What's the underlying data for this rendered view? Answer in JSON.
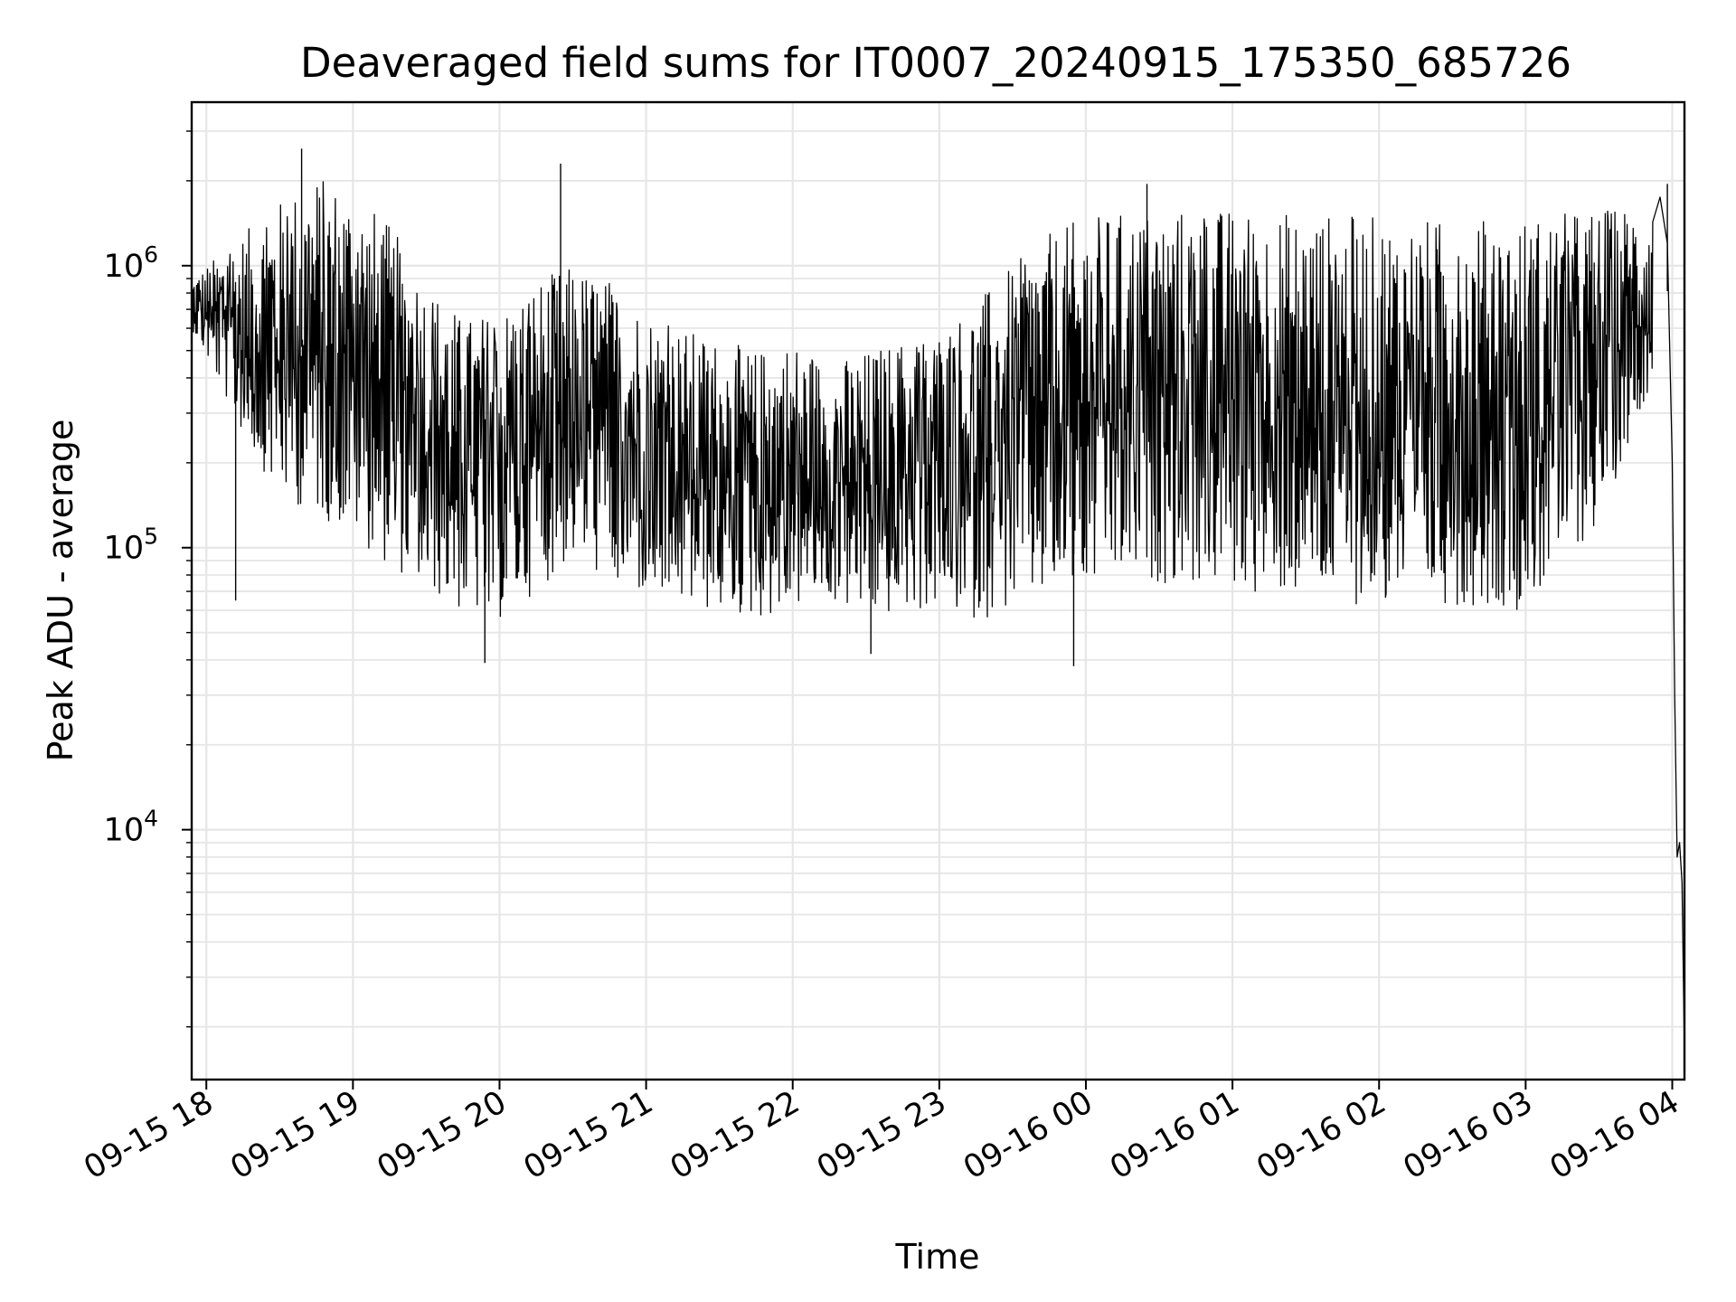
{
  "chart_data": {
    "type": "line",
    "title": "Deaveraged field sums for IT0007_20240915_175350_685726",
    "xlabel": "Time",
    "ylabel": "Peak ADU - average",
    "y_scale": "log",
    "ylim": [
      1300,
      3800000
    ],
    "xlim": [
      "2024-09-15T17:54:00",
      "2024-09-16T04:05:00"
    ],
    "x_ticks": [
      "09-15 18",
      "09-15 19",
      "09-15 20",
      "09-15 21",
      "09-15 22",
      "09-15 23",
      "09-16 00",
      "09-16 01",
      "09-16 02",
      "09-16 03",
      "09-16 04"
    ],
    "y_ticks": [
      {
        "base": "10",
        "exp": "4",
        "value": 10000
      },
      {
        "base": "10",
        "exp": "5",
        "value": 100000
      },
      {
        "base": "10",
        "exp": "6",
        "value": 1000000
      }
    ],
    "grid": true,
    "line_color": "#000000",
    "grid_color": "#e6e6e6",
    "series": [
      {
        "envelope_upper": [
          [
            "2024-09-15T17:54:00",
            900000
          ],
          [
            "2024-09-15T18:15:00",
            1300000
          ],
          [
            "2024-09-15T18:30:00",
            1700000
          ],
          [
            "2024-09-15T18:45:00",
            2100000
          ],
          [
            "2024-09-15T19:00:00",
            1900000
          ],
          [
            "2024-09-15T19:15:00",
            1400000
          ],
          [
            "2024-09-15T19:30:00",
            900000
          ],
          [
            "2024-09-15T19:45:00",
            650000
          ],
          [
            "2024-09-15T20:00:00",
            700000
          ],
          [
            "2024-09-15T20:15:00",
            900000
          ],
          [
            "2024-09-15T20:30:00",
            1000000
          ],
          [
            "2024-09-15T20:45:00",
            900000
          ],
          [
            "2024-09-15T21:00:00",
            700000
          ],
          [
            "2024-09-15T21:15:00",
            600000
          ],
          [
            "2024-09-15T21:30:00",
            550000
          ],
          [
            "2024-09-15T21:45:00",
            500000
          ],
          [
            "2024-09-15T22:00:00",
            550000
          ],
          [
            "2024-09-15T22:15:00",
            450000
          ],
          [
            "2024-09-15T22:30:00",
            500000
          ],
          [
            "2024-09-15T22:45:00",
            550000
          ],
          [
            "2024-09-15T23:00:00",
            600000
          ],
          [
            "2024-09-15T23:15:00",
            750000
          ],
          [
            "2024-09-15T23:30:00",
            1000000
          ],
          [
            "2024-09-15T23:45:00",
            1300000
          ],
          [
            "2024-09-16T00:00:00",
            1500000
          ],
          [
            "2024-09-16T00:30:00",
            1600000
          ],
          [
            "2024-09-16T01:00:00",
            1600000
          ],
          [
            "2024-09-16T01:30:00",
            1550000
          ],
          [
            "2024-09-16T02:00:00",
            1500000
          ],
          [
            "2024-09-16T02:30:00",
            1450000
          ],
          [
            "2024-09-16T03:00:00",
            1500000
          ],
          [
            "2024-09-16T03:30:00",
            1600000
          ],
          [
            "2024-09-16T03:52:00",
            1650000
          ]
        ],
        "envelope_lower": [
          [
            "2024-09-15T17:54:00",
            600000
          ],
          [
            "2024-09-15T18:15:00",
            250000
          ],
          [
            "2024-09-15T18:30:00",
            150000
          ],
          [
            "2024-09-15T18:45:00",
            130000
          ],
          [
            "2024-09-15T19:00:00",
            110000
          ],
          [
            "2024-09-15T19:15:00",
            85000
          ],
          [
            "2024-09-15T19:30:00",
            70000
          ],
          [
            "2024-09-15T19:45:00",
            58000
          ],
          [
            "2024-09-15T20:00:00",
            55000
          ],
          [
            "2024-09-15T20:15:00",
            70000
          ],
          [
            "2024-09-15T20:30:00",
            90000
          ],
          [
            "2024-09-15T20:45:00",
            75000
          ],
          [
            "2024-09-15T21:00:00",
            65000
          ],
          [
            "2024-09-15T21:15:00",
            60000
          ],
          [
            "2024-09-15T21:30:00",
            58000
          ],
          [
            "2024-09-15T21:45:00",
            55000
          ],
          [
            "2024-09-15T22:00:00",
            60000
          ],
          [
            "2024-09-15T22:15:00",
            65000
          ],
          [
            "2024-09-15T22:30:00",
            55000
          ],
          [
            "2024-09-15T22:45:00",
            58000
          ],
          [
            "2024-09-15T23:00:00",
            60000
          ],
          [
            "2024-09-15T23:15:00",
            55000
          ],
          [
            "2024-09-15T23:30:00",
            60000
          ],
          [
            "2024-09-15T23:45:00",
            65000
          ],
          [
            "2024-09-16T00:00:00",
            70000
          ],
          [
            "2024-09-16T00:30:00",
            75000
          ],
          [
            "2024-09-16T01:00:00",
            70000
          ],
          [
            "2024-09-16T01:30:00",
            65000
          ],
          [
            "2024-09-16T02:00:00",
            62000
          ],
          [
            "2024-09-16T02:30:00",
            63000
          ],
          [
            "2024-09-16T03:00:00",
            60000
          ],
          [
            "2024-09-16T03:30:00",
            120000
          ],
          [
            "2024-09-16T03:52:00",
            400000
          ]
        ],
        "spikes": [
          [
            "2024-09-15T18:39:00",
            2600000
          ],
          [
            "2024-09-15T20:25:00",
            2300000
          ],
          [
            "2024-09-15T19:54:00",
            39000
          ],
          [
            "2024-09-15T23:55:00",
            38000
          ],
          [
            "2024-09-16T03:58:00",
            1950000
          ],
          [
            "2024-09-15T22:32:00",
            42000
          ],
          [
            "2024-09-15T18:12:00",
            65000
          ],
          [
            "2024-09-16T00:25:00",
            1950000
          ]
        ],
        "tail": [
          [
            "2024-09-16T03:55:00",
            1750000
          ],
          [
            "2024-09-16T03:58:00",
            1200000
          ],
          [
            "2024-09-16T04:00:00",
            200000
          ],
          [
            "2024-09-16T04:01:00",
            30000
          ],
          [
            "2024-09-16T04:02:00",
            8000
          ],
          [
            "2024-09-16T04:03:00",
            9000
          ],
          [
            "2024-09-16T04:04:00",
            6500
          ],
          [
            "2024-09-16T04:05:00",
            1600
          ]
        ]
      }
    ]
  }
}
